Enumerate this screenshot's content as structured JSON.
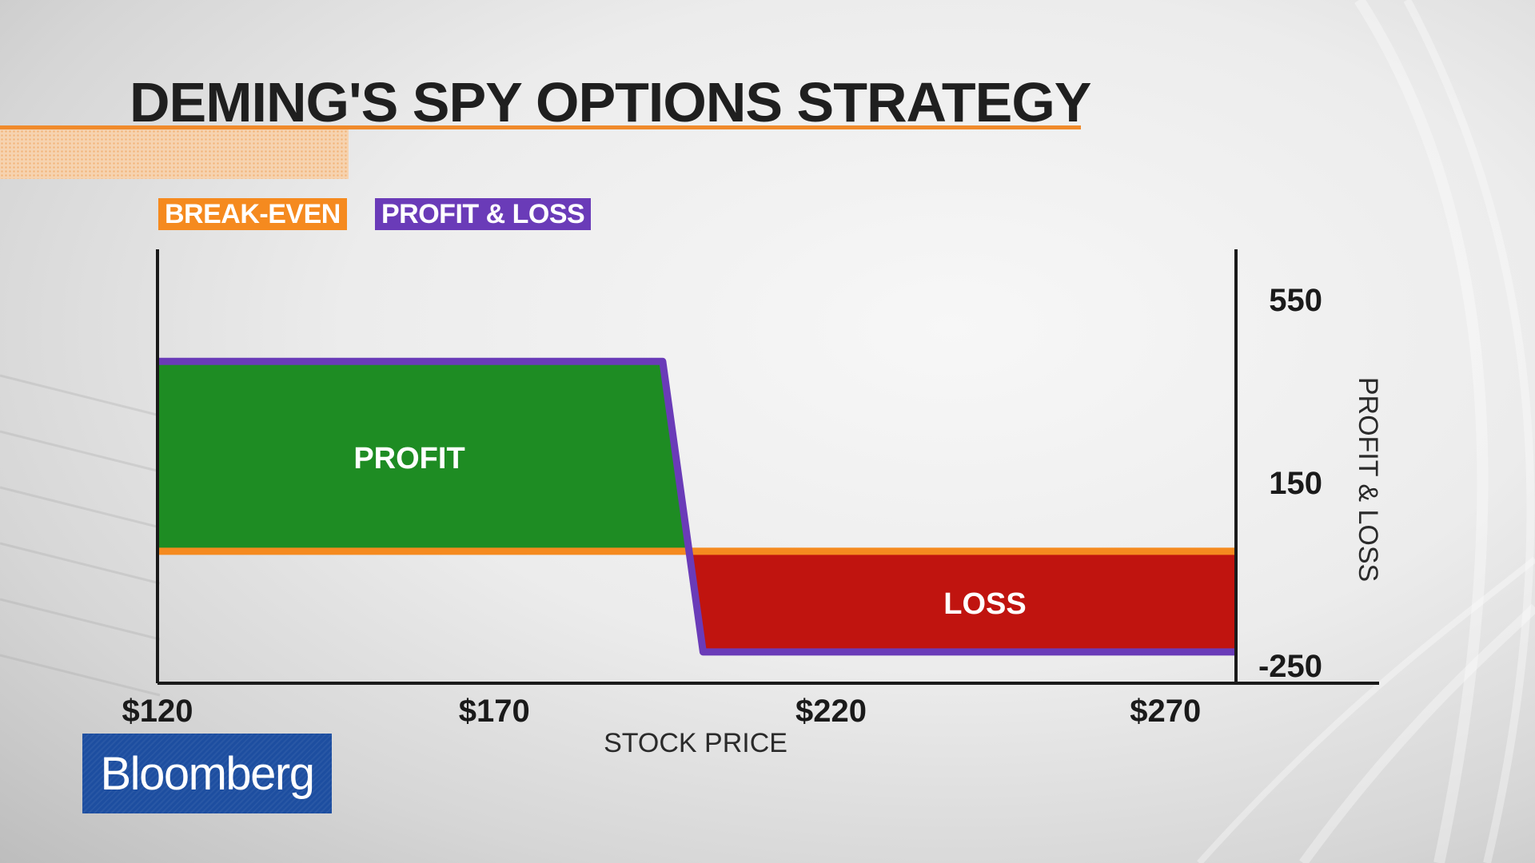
{
  "title": "DEMING'S SPY OPTIONS STRATEGY",
  "legend": {
    "break_even": "BREAK-EVEN",
    "profit_loss": "PROFIT & LOSS"
  },
  "colors": {
    "break_even": "#f58a1f",
    "profit_loss": "#6a3bb8",
    "profit_fill": "#1e8c23",
    "loss_fill": "#c0140f"
  },
  "chart_data": {
    "type": "line",
    "xlabel": "STOCK PRICE",
    "ylabel": "PROFIT & LOSS",
    "x_ticks": [
      "$120",
      "$170",
      "$220",
      "$270"
    ],
    "x_tick_values": [
      120,
      170,
      220,
      270
    ],
    "y_ticks": [
      "550",
      "150",
      "-250"
    ],
    "y_tick_values": [
      550,
      150,
      -250
    ],
    "xlim": [
      120,
      280
    ],
    "ylim": [
      -250,
      550
    ],
    "series": [
      {
        "name": "PROFIT & LOSS",
        "x": [
          120,
          195,
          201,
          280
        ],
        "y": [
          415,
          415,
          -220,
          -220
        ]
      },
      {
        "name": "BREAK-EVEN",
        "x": [
          120,
          280
        ],
        "y": [
          0,
          0
        ]
      }
    ],
    "regions": [
      {
        "label": "PROFIT",
        "x": [
          120,
          199
        ]
      },
      {
        "label": "LOSS",
        "x": [
          199,
          280
        ]
      }
    ]
  },
  "brand": "Bloomberg"
}
